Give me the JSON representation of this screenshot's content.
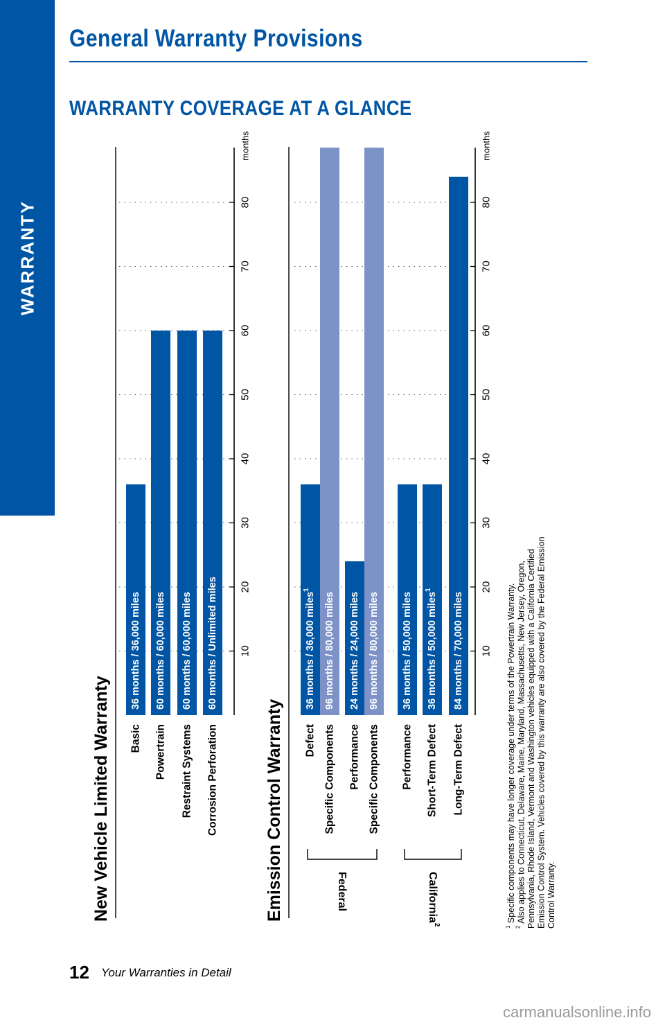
{
  "header": {
    "side_tab_label": "WARRANTY",
    "page_title": "General Warranty Provisions",
    "section_title": "WARRANTY COVERAGE AT A GLANCE"
  },
  "footer": {
    "page_number": "12",
    "page_label": "Your Warranties in Detail"
  },
  "watermark": "carmanualsonline.info",
  "colors": {
    "brand_blue": "#0055a4",
    "light_blue": "#7d93c7"
  },
  "chart_data": [
    {
      "type": "bar",
      "orientation": "horizontal",
      "title": "New Vehicle Limited Warranty",
      "axis_unit": "months",
      "ticks": [
        10,
        20,
        30,
        40,
        50,
        60,
        70,
        80
      ],
      "xlim": [
        0,
        90
      ],
      "grid": true,
      "rows": [
        {
          "name": "Basic",
          "months": 36,
          "label": "36 months  /  36,000 miles",
          "shade": "dark"
        },
        {
          "name": "Powertrain",
          "months": 60,
          "label": "60 months  /  60,000 miles",
          "shade": "dark"
        },
        {
          "name": "Restraint Systems",
          "months": 60,
          "label": "60 months  /  60,000 miles",
          "shade": "dark"
        },
        {
          "name": "Corrosion Perforation",
          "months": 60,
          "label": "60 months  /  Unlimited miles",
          "shade": "dark"
        }
      ]
    },
    {
      "type": "bar",
      "orientation": "horizontal",
      "title": "Emission Control Warranty",
      "axis_unit": "months",
      "ticks": [
        10,
        20,
        30,
        40,
        50,
        60,
        70,
        80
      ],
      "xlim": [
        0,
        90
      ],
      "grid": true,
      "groups": [
        {
          "name": "Federal",
          "superscript": "",
          "first_row": 0,
          "last_row": 3
        },
        {
          "name": "California",
          "superscript": "2",
          "first_row": 4,
          "last_row": 6
        }
      ],
      "rows": [
        {
          "name": "Defect",
          "months": 36,
          "label": "36 months  /  36,000 miles",
          "sup": "1",
          "shade": "dark"
        },
        {
          "name": "Specific Components",
          "months": 96,
          "label": "96 months  /  80,000 miles",
          "sup": "",
          "shade": "light"
        },
        {
          "name": "Performance",
          "months": 24,
          "label": "24 months  /  24,000 miles",
          "sup": "",
          "shade": "dark"
        },
        {
          "name": "Specific Components",
          "months": 96,
          "label": "96 months  /  80,000 miles",
          "sup": "",
          "shade": "light"
        },
        {
          "name": "Performance",
          "months": 36,
          "label": "36 months  /  50,000 miles",
          "sup": "",
          "shade": "dark"
        },
        {
          "name": "Short-Term Defect",
          "months": 36,
          "label": "36 months  /  50,000 miles",
          "sup": "1",
          "shade": "dark"
        },
        {
          "name": "Long-Term Defect",
          "months": 84,
          "label": "84 months  /  70,000 miles",
          "sup": "",
          "shade": "dark"
        }
      ]
    }
  ],
  "footnotes": [
    {
      "mark": "1",
      "lines": [
        "Specific components may have longer coverage under terms of the Powertrain Warranty."
      ]
    },
    {
      "mark": "2",
      "lines": [
        "Also applies to Connecticut, Delaware, Maine, Maryland, Massachusetts, New Jersey, Oregon,",
        "Pennsylvania, Rhode Island, Vermont and Washington vehicles equipped with a California Certified",
        "Emission Control System. Vehicles covered by this warranty are also covered by the Federal Emission",
        "Control Warranty."
      ]
    }
  ]
}
